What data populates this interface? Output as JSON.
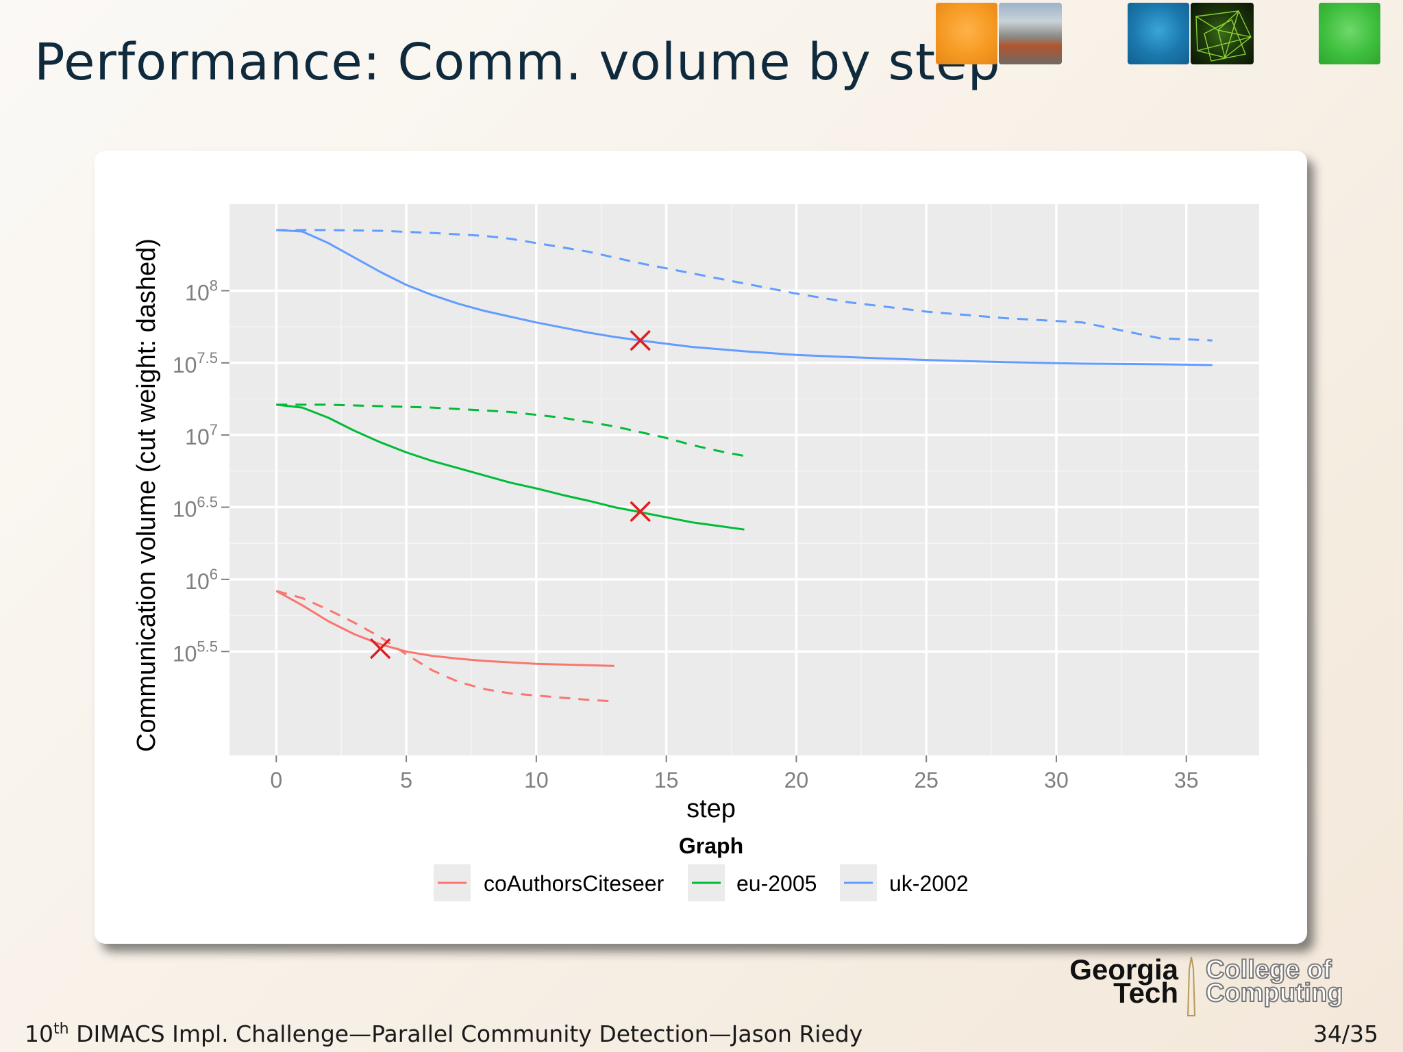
{
  "slide": {
    "title": "Performance: Comm. volume by step",
    "footer_sup": "th",
    "footer_num": "10",
    "footer_text": " DIMACS Impl. Challenge—Parallel Community Detection—Jason Riedy",
    "page": "34/35",
    "logo": {
      "line1": "Georgia",
      "line2": "Tech",
      "line3": "College of",
      "line4": "Computing"
    }
  },
  "colors": {
    "coAuthorsCiteseer": "#f8766d",
    "eu-2005": "#00ba38",
    "uk-2002": "#619cff",
    "marker": "#e41a1c",
    "panel": "#ebebeb"
  },
  "chart_data": {
    "type": "line",
    "xlabel": "step",
    "ylabel": "Communication volume (cut weight: dashed)",
    "xlim": [
      -1.8,
      37.8
    ],
    "ylim_log10": [
      4.78,
      8.6
    ],
    "x_ticks": [
      0,
      5,
      10,
      15,
      20,
      25,
      30,
      35
    ],
    "y_ticks": [
      {
        "log10": 5.5,
        "base": "10",
        "exp": "5.5"
      },
      {
        "log10": 6.0,
        "base": "10",
        "exp": "6"
      },
      {
        "log10": 6.5,
        "base": "10",
        "exp": "6.5"
      },
      {
        "log10": 7.0,
        "base": "10",
        "exp": "7"
      },
      {
        "log10": 7.5,
        "base": "10",
        "exp": "7.5"
      },
      {
        "log10": 8.0,
        "base": "10",
        "exp": "8"
      }
    ],
    "y_scale": "log10",
    "grid": true,
    "legend": {
      "title": "Graph",
      "placement": "bottom",
      "entries": [
        "coAuthorsCiteseer",
        "eu-2005",
        "uk-2002"
      ]
    },
    "series": [
      {
        "name": "coAuthorsCiteseer",
        "kind": "communication volume",
        "x": [
          0,
          1,
          2,
          3,
          4,
          5,
          6,
          7,
          8,
          9,
          10,
          11,
          12,
          13
        ],
        "log10_y": [
          5.92,
          5.82,
          5.71,
          5.62,
          5.55,
          5.5,
          5.47,
          5.45,
          5.435,
          5.425,
          5.415,
          5.41,
          5.405,
          5.4
        ]
      },
      {
        "name": "coAuthorsCiteseer",
        "kind": "cut weight",
        "x": [
          0,
          1,
          2,
          3,
          4,
          5,
          6,
          7,
          8,
          9,
          10,
          11,
          12,
          13
        ],
        "log10_y": [
          5.92,
          5.87,
          5.79,
          5.7,
          5.6,
          5.48,
          5.37,
          5.29,
          5.24,
          5.21,
          5.195,
          5.18,
          5.165,
          5.155
        ]
      },
      {
        "name": "eu-2005",
        "kind": "communication volume",
        "x": [
          0,
          1,
          2,
          3,
          4,
          5,
          6,
          7,
          8,
          9,
          10,
          11,
          12,
          13,
          14,
          15,
          16,
          17,
          18
        ],
        "log10_y": [
          7.21,
          7.19,
          7.12,
          7.03,
          6.95,
          6.88,
          6.82,
          6.77,
          6.72,
          6.67,
          6.63,
          6.585,
          6.545,
          6.5,
          6.465,
          6.43,
          6.395,
          6.37,
          6.345
        ]
      },
      {
        "name": "eu-2005",
        "kind": "cut weight",
        "x": [
          0,
          2,
          4,
          6,
          8,
          9,
          10,
          11,
          12,
          13,
          14,
          15,
          16,
          17,
          18
        ],
        "log10_y": [
          7.21,
          7.21,
          7.2,
          7.19,
          7.17,
          7.16,
          7.14,
          7.12,
          7.09,
          7.06,
          7.02,
          6.98,
          6.93,
          6.89,
          6.855
        ]
      },
      {
        "name": "uk-2002",
        "kind": "communication volume",
        "x": [
          0,
          1,
          2,
          3,
          4,
          5,
          6,
          7,
          8,
          9,
          10,
          11,
          12,
          13,
          14,
          16,
          18,
          20,
          22,
          25,
          28,
          31,
          34,
          36
        ],
        "log10_y": [
          8.42,
          8.41,
          8.33,
          8.23,
          8.13,
          8.04,
          7.97,
          7.91,
          7.86,
          7.82,
          7.78,
          7.745,
          7.71,
          7.68,
          7.655,
          7.61,
          7.58,
          7.555,
          7.54,
          7.52,
          7.505,
          7.495,
          7.49,
          7.485
        ]
      },
      {
        "name": "uk-2002",
        "kind": "cut weight",
        "x": [
          0,
          2,
          4,
          6,
          8,
          9,
          10,
          11,
          12,
          13,
          14,
          16,
          18,
          20,
          22,
          25,
          28,
          31,
          34,
          36
        ],
        "log10_y": [
          8.42,
          8.42,
          8.415,
          8.4,
          8.38,
          8.36,
          8.33,
          8.3,
          8.27,
          8.23,
          8.19,
          8.12,
          8.05,
          7.98,
          7.92,
          7.855,
          7.81,
          7.78,
          7.67,
          7.655
        ]
      }
    ],
    "markers": [
      {
        "series": "coAuthorsCiteseer",
        "x": 4,
        "log10_y": 5.52,
        "symbol": "X"
      },
      {
        "series": "eu-2005",
        "x": 14,
        "log10_y": 6.47,
        "symbol": "X"
      },
      {
        "series": "uk-2002",
        "x": 14,
        "log10_y": 7.655,
        "symbol": "X"
      }
    ]
  }
}
